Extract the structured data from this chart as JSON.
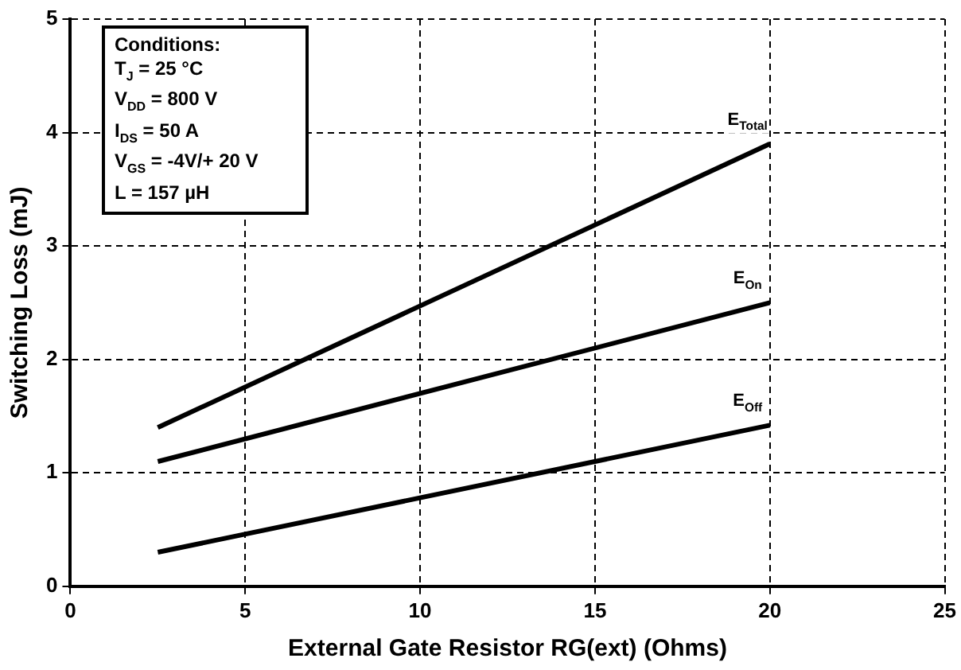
{
  "chart_data": {
    "type": "line",
    "xlabel": "External Gate Resistor RG(ext) (Ohms)",
    "ylabel": "Switching Loss (mJ)",
    "x": [
      2.5,
      20
    ],
    "series": [
      {
        "name": "E$_{Total}$",
        "color": "#000000",
        "values": [
          1.4,
          3.9
        ]
      },
      {
        "name": "E$_{On}$",
        "color": "#000000",
        "values": [
          1.1,
          2.5
        ]
      },
      {
        "name": "E$_{Off}$",
        "color": "#000000",
        "values": [
          0.3,
          1.42
        ]
      }
    ],
    "xlim": [
      0,
      25
    ],
    "xticks": [
      0,
      5,
      10,
      15,
      20,
      25
    ],
    "ylim": [
      0,
      5
    ],
    "yticks": [
      0,
      1,
      2,
      3,
      4,
      5
    ],
    "grid": true,
    "marker": "none",
    "line_style": "solid",
    "annotations": [
      "Conditions:",
      "T$_{J}$ = 25 °C",
      "V$_{DD}$ = 800 V",
      "I$_{DS}$ = 50 A",
      "V$_{GS}$ = -4V/+ 20 V",
      "L = 157 µH"
    ]
  }
}
